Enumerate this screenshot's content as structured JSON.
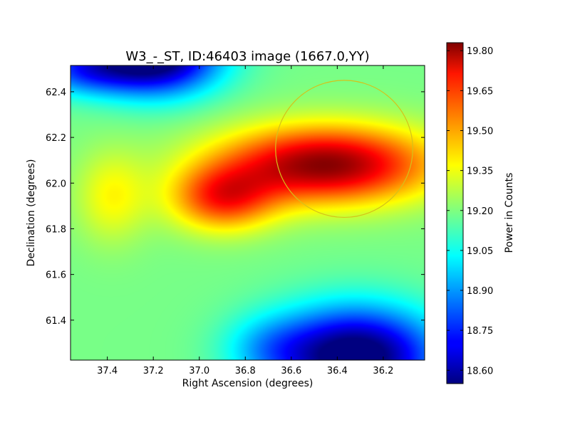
{
  "chart_data": {
    "type": "heatmap",
    "title": "W3_-_ST, ID:46403 image (1667.0,YY)",
    "xlabel": "Right Ascension (degrees)",
    "ylabel": "Declination (degrees)",
    "xlim": [
      37.56,
      36.02
    ],
    "ylim": [
      61.225,
      62.515
    ],
    "x_ticks": [
      37.4,
      37.2,
      37.0,
      36.8,
      36.6,
      36.4,
      36.2
    ],
    "x_tick_labels": [
      "37.4",
      "37.2",
      "37.0",
      "36.8",
      "36.6",
      "36.4",
      "36.2"
    ],
    "y_ticks": [
      61.4,
      61.6,
      61.8,
      62.0,
      62.2,
      62.4
    ],
    "y_tick_labels": [
      "61.4",
      "61.6",
      "61.8",
      "62.0",
      "62.2",
      "62.4"
    ],
    "colormap": "jet",
    "colorbar": {
      "label": "Power in Counts",
      "min": 18.55,
      "max": 19.83,
      "ticks": [
        18.6,
        18.75,
        18.9,
        19.05,
        19.2,
        19.35,
        19.5,
        19.65,
        19.8
      ],
      "tick_labels": [
        "18.60",
        "18.75",
        "18.90",
        "19.05",
        "19.20",
        "19.35",
        "19.50",
        "19.65",
        "19.80"
      ]
    },
    "field": {
      "base": 19.18,
      "components": [
        {
          "ra": 36.45,
          "dec": 62.08,
          "sigma_ra": 0.33,
          "sigma_dec": 0.12,
          "amp": 0.64
        },
        {
          "ra": 36.9,
          "dec": 61.93,
          "sigma_ra": 0.16,
          "sigma_dec": 0.1,
          "amp": 0.4
        },
        {
          "ra": 37.38,
          "dec": 61.94,
          "sigma_ra": 0.11,
          "sigma_dec": 0.14,
          "amp": 0.17
        },
        {
          "ra": 37.18,
          "dec": 62.56,
          "sigma_ra": 0.19,
          "sigma_dec": 0.12,
          "amp": -0.7
        },
        {
          "ra": 37.5,
          "dec": 62.5,
          "sigma_ra": 0.17,
          "sigma_dec": 0.08,
          "amp": -0.35
        },
        {
          "ra": 36.32,
          "dec": 61.24,
          "sigma_ra": 0.25,
          "sigma_dec": 0.15,
          "amp": -0.72
        },
        {
          "ra": 36.7,
          "dec": 61.28,
          "sigma_ra": 0.14,
          "sigma_dec": 0.1,
          "amp": -0.15
        }
      ]
    },
    "annotations": [
      {
        "type": "circle",
        "ra": 36.37,
        "dec": 62.15,
        "radius_dec": 0.3,
        "color": "#d4c21a"
      }
    ]
  }
}
